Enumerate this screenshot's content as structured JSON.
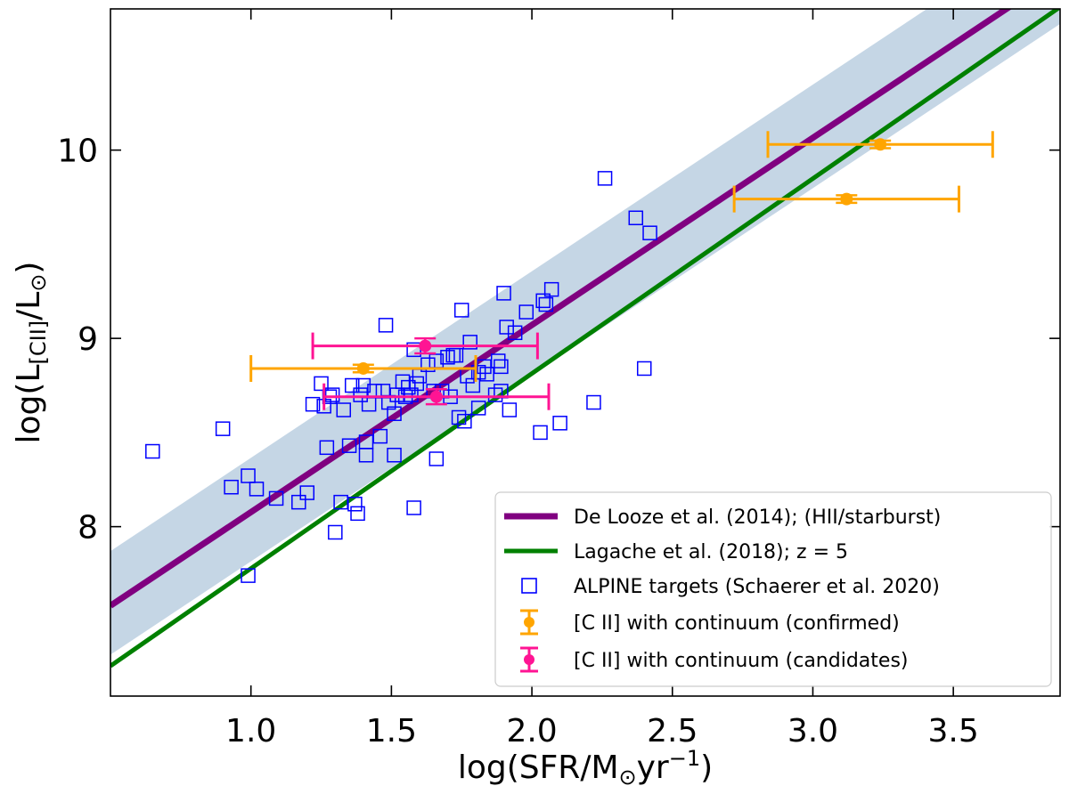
{
  "chart_data": {
    "type": "scatter",
    "xlabel": {
      "pre": "log(SFR/M",
      "sun": "⊙",
      "mid": "yr",
      "sup": "−1",
      "post": ")"
    },
    "ylabel": {
      "pre": "log(L",
      "sub": "[CII]",
      "mid": "/L",
      "sun": "⊙",
      "post": ")"
    },
    "xlim": [
      0.5,
      3.88
    ],
    "ylim": [
      7.1,
      10.75
    ],
    "xticks": [
      1.0,
      1.5,
      2.0,
      2.5,
      3.0,
      3.5
    ],
    "xtick_labels": [
      "1.0",
      "1.5",
      "2.0",
      "2.5",
      "3.0",
      "3.5"
    ],
    "yticks": [
      8,
      9,
      10
    ],
    "ytick_labels": [
      "8",
      "9",
      "10"
    ],
    "band": {
      "name": "De Looze scatter band",
      "color": "#c5d6e5",
      "upper": [
        [
          0.5,
          7.87
        ],
        [
          3.88,
          11.22
        ]
      ],
      "lower": [
        [
          0.5,
          7.32
        ],
        [
          3.88,
          10.67
        ]
      ]
    },
    "lines": [
      {
        "name": "De Looze et al. (2014); (HII/starburst)",
        "color": "#800080",
        "x": [
          0.5,
          3.88
        ],
        "y": [
          7.58,
          10.94
        ]
      },
      {
        "name": "Lagache et al. (2018); z = 5",
        "color": "#008000",
        "x": [
          0.5,
          3.88
        ],
        "y": [
          7.26,
          10.76
        ]
      }
    ],
    "scatter": {
      "name": "ALPINE targets (Schaerer et al. 2020)",
      "color": "#0000ff",
      "points": [
        [
          0.65,
          8.4
        ],
        [
          0.9,
          8.52
        ],
        [
          0.93,
          8.21
        ],
        [
          0.99,
          8.27
        ],
        [
          0.99,
          7.74
        ],
        [
          1.02,
          8.2
        ],
        [
          1.09,
          8.15
        ],
        [
          1.17,
          8.13
        ],
        [
          1.2,
          8.18
        ],
        [
          1.22,
          8.65
        ],
        [
          1.25,
          8.76
        ],
        [
          1.26,
          8.64
        ],
        [
          1.27,
          8.42
        ],
        [
          1.28,
          8.69
        ],
        [
          1.29,
          8.7
        ],
        [
          1.3,
          7.97
        ],
        [
          1.32,
          8.13
        ],
        [
          1.33,
          8.62
        ],
        [
          1.35,
          8.43
        ],
        [
          1.36,
          8.75
        ],
        [
          1.37,
          8.12
        ],
        [
          1.38,
          8.07
        ],
        [
          1.39,
          8.7
        ],
        [
          1.4,
          8.75
        ],
        [
          1.41,
          8.45
        ],
        [
          1.41,
          8.38
        ],
        [
          1.42,
          8.65
        ],
        [
          1.44,
          8.72
        ],
        [
          1.46,
          8.48
        ],
        [
          1.47,
          8.72
        ],
        [
          1.48,
          9.07
        ],
        [
          1.49,
          8.66
        ],
        [
          1.51,
          8.6
        ],
        [
          1.51,
          8.38
        ],
        [
          1.52,
          8.7
        ],
        [
          1.54,
          8.77
        ],
        [
          1.55,
          8.69
        ],
        [
          1.56,
          8.74
        ],
        [
          1.57,
          8.7
        ],
        [
          1.58,
          8.1
        ],
        [
          1.58,
          8.94
        ],
        [
          1.59,
          8.76
        ],
        [
          1.6,
          8.8
        ],
        [
          1.63,
          8.86
        ],
        [
          1.65,
          8.72
        ],
        [
          1.66,
          8.88
        ],
        [
          1.66,
          8.36
        ],
        [
          1.68,
          8.72
        ],
        [
          1.7,
          8.9
        ],
        [
          1.71,
          8.69
        ],
        [
          1.72,
          8.91
        ],
        [
          1.73,
          8.91
        ],
        [
          1.74,
          8.58
        ],
        [
          1.75,
          9.15
        ],
        [
          1.76,
          8.56
        ],
        [
          1.77,
          8.8
        ],
        [
          1.78,
          8.98
        ],
        [
          1.79,
          8.75
        ],
        [
          1.81,
          8.63
        ],
        [
          1.81,
          8.82
        ],
        [
          1.83,
          8.85
        ],
        [
          1.84,
          8.81
        ],
        [
          1.87,
          8.7
        ],
        [
          1.88,
          8.88
        ],
        [
          1.89,
          8.72
        ],
        [
          1.89,
          8.85
        ],
        [
          1.9,
          9.24
        ],
        [
          1.91,
          9.06
        ],
        [
          1.92,
          8.62
        ],
        [
          1.94,
          9.03
        ],
        [
          1.98,
          9.14
        ],
        [
          2.03,
          8.5
        ],
        [
          2.04,
          9.2
        ],
        [
          2.05,
          9.18
        ],
        [
          2.07,
          9.26
        ],
        [
          2.1,
          8.55
        ],
        [
          2.22,
          8.66
        ],
        [
          2.26,
          9.85
        ],
        [
          2.37,
          9.64
        ],
        [
          2.4,
          8.84
        ],
        [
          2.42,
          9.56
        ]
      ]
    },
    "errorbars": [
      {
        "name": "[C II] with continuum (confirmed)",
        "color": "#ffa500",
        "points": [
          {
            "x": 3.24,
            "y": 10.03,
            "xerr_lo": 0.4,
            "xerr_hi": 0.4,
            "yerr": 0.02
          },
          {
            "x": 3.12,
            "y": 9.74,
            "xerr_lo": 0.4,
            "xerr_hi": 0.4,
            "yerr": 0.02
          },
          {
            "x": 1.4,
            "y": 8.84,
            "xerr_lo": 0.4,
            "xerr_hi": 0.4,
            "yerr": 0.02
          }
        ]
      },
      {
        "name": "[C II] with continuum (candidates)",
        "color": "#ff1493",
        "points": [
          {
            "x": 1.62,
            "y": 8.96,
            "xerr_lo": 0.4,
            "xerr_hi": 0.4,
            "yerr": 0.04
          },
          {
            "x": 1.66,
            "y": 8.69,
            "xerr_lo": 0.4,
            "xerr_hi": 0.4,
            "yerr": 0.04
          }
        ]
      }
    ],
    "legend": {
      "location": "lower-right",
      "entries": [
        {
          "kind": "line",
          "color": "#800080",
          "label": "De Looze et al. (2014); (HII/starburst)"
        },
        {
          "kind": "line",
          "color": "#008000",
          "label": "Lagache et al. (2018); z = 5"
        },
        {
          "kind": "square",
          "color": "#0000ff",
          "label": "ALPINE targets (Schaerer et al. 2020)"
        },
        {
          "kind": "errorbar",
          "color": "#ffa500",
          "label": "[C II] with continuum (confirmed)"
        },
        {
          "kind": "errorbar",
          "color": "#ff1493",
          "label": "[C II] with continuum (candidates)"
        }
      ]
    }
  }
}
